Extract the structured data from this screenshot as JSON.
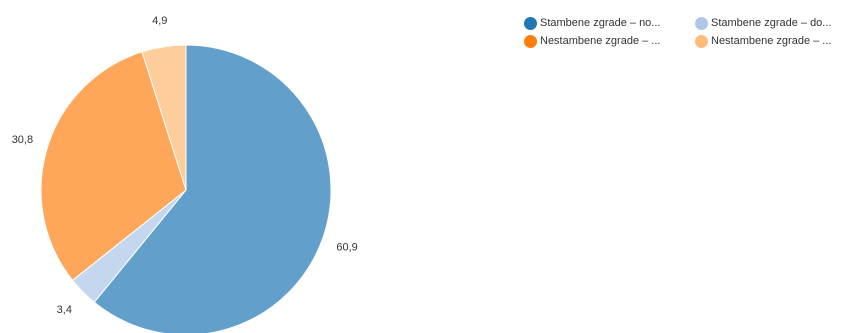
{
  "chart_data": {
    "type": "pie",
    "slices": [
      {
        "name": "Stambene zgrade – no...",
        "value": 60.9,
        "label": "60,9",
        "color": "#62a0cb"
      },
      {
        "name": "Stambene zgrade – do...",
        "value": 3.4,
        "label": "3,4",
        "color": "#c5d7ef"
      },
      {
        "name": "Nestambene zgrade – ...",
        "value": 30.8,
        "label": "30,8",
        "color": "#fea75a"
      },
      {
        "name": "Nestambene zgrade – ...",
        "value": 4.9,
        "label": "4,9",
        "color": "#fdcd9c"
      }
    ],
    "legend": {
      "position": "top-right",
      "items": [
        {
          "label": "Stambene zgrade – no...",
          "color": "#1f77b4"
        },
        {
          "label": "Stambene zgrade – do...",
          "color": "#aec7e8"
        },
        {
          "label": "Nestambene zgrade – ...",
          "color": "#ff7f0e"
        },
        {
          "label": "Nestambene zgrade – ...",
          "color": "#ffbb78"
        }
      ]
    }
  }
}
